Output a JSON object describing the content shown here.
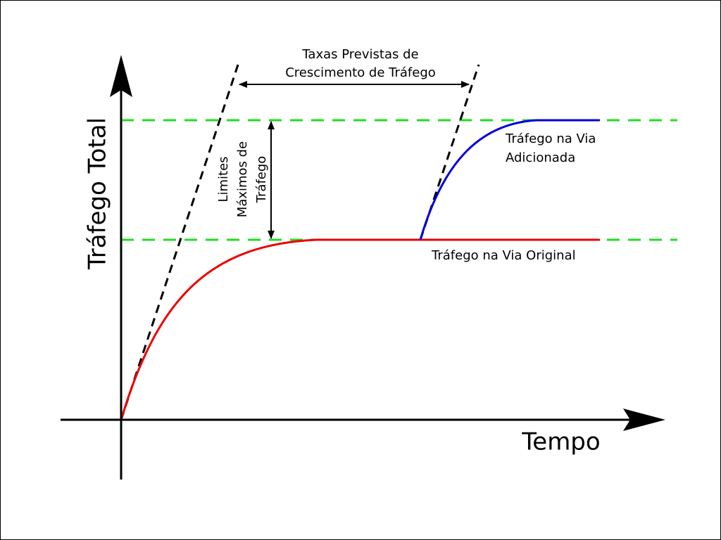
{
  "axes": {
    "y_label": "Tráfego Total",
    "x_label": "Tempo"
  },
  "annotations": {
    "growth_rates": [
      "Taxas Previstas de",
      "Crescimento de Tráfego"
    ],
    "max_limits": [
      "Limites",
      "Máximos de",
      "Tráfego"
    ]
  },
  "curves": {
    "added": [
      "Tráfego na Via",
      "Adicionada"
    ],
    "original": "Tráfego na Via Original"
  }
}
